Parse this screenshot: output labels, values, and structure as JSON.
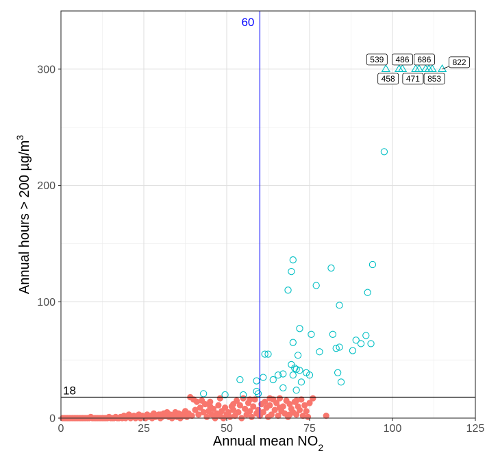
{
  "chart_data": {
    "type": "scatter",
    "title": "",
    "xlabel": "Annual mean NO",
    "xlabel_sub": "2",
    "ylabel": "Annual hours > 200 µg/m",
    "ylabel_sup": "3",
    "xlim": [
      0,
      125
    ],
    "ylim": [
      0,
      350
    ],
    "x_ticks": [
      0,
      25,
      50,
      75,
      100,
      125
    ],
    "y_ticks": [
      0,
      100,
      200,
      300
    ],
    "grid": true,
    "legend": "none",
    "colors": {
      "below": "#F8766D",
      "above": "#00BFC4",
      "vline": "#0000FF",
      "hline": "#000000"
    },
    "reference_lines": [
      {
        "orientation": "vertical",
        "value": 60,
        "label": "60",
        "color": "#0000FF"
      },
      {
        "orientation": "horizontal",
        "value": 18,
        "label": "18",
        "color": "#000000"
      }
    ],
    "series": [
      {
        "marker": "filled-circle",
        "color": "#F8766D",
        "points": [
          [
            0.5,
            0
          ],
          [
            1,
            0
          ],
          [
            1.5,
            0
          ],
          [
            2,
            0
          ],
          [
            2.5,
            0
          ],
          [
            3,
            0
          ],
          [
            3.5,
            0
          ],
          [
            4,
            0
          ],
          [
            4.5,
            0
          ],
          [
            5,
            0
          ],
          [
            5.5,
            0
          ],
          [
            6,
            0
          ],
          [
            6.5,
            0
          ],
          [
            7,
            0
          ],
          [
            7.5,
            0
          ],
          [
            8,
            0
          ],
          [
            8.5,
            0
          ],
          [
            9,
            1
          ],
          [
            9.5,
            0
          ],
          [
            10,
            0
          ],
          [
            10.5,
            0
          ],
          [
            11,
            0
          ],
          [
            11.5,
            0
          ],
          [
            12,
            0
          ],
          [
            12.5,
            0
          ],
          [
            13,
            0
          ],
          [
            13.5,
            0
          ],
          [
            14,
            0
          ],
          [
            14.5,
            1
          ],
          [
            15,
            0
          ],
          [
            15.5,
            0
          ],
          [
            16,
            0
          ],
          [
            16.5,
            1
          ],
          [
            17,
            0
          ],
          [
            17.5,
            0
          ],
          [
            18,
            1
          ],
          [
            18.5,
            0
          ],
          [
            19,
            2
          ],
          [
            19.5,
            0
          ],
          [
            20,
            1
          ],
          [
            20.5,
            3
          ],
          [
            21,
            0
          ],
          [
            21.5,
            1
          ],
          [
            22,
            2
          ],
          [
            22.5,
            0
          ],
          [
            23,
            1
          ],
          [
            23.5,
            3
          ],
          [
            24,
            0
          ],
          [
            24.5,
            2
          ],
          [
            25,
            1
          ],
          [
            25.5,
            0
          ],
          [
            26,
            3
          ],
          [
            26.5,
            1
          ],
          [
            27,
            2
          ],
          [
            27.5,
            0
          ],
          [
            28,
            4
          ],
          [
            28.5,
            1
          ],
          [
            29,
            2
          ],
          [
            29.5,
            3
          ],
          [
            30,
            0
          ],
          [
            30.5,
            1
          ],
          [
            31,
            4
          ],
          [
            31.5,
            2
          ],
          [
            32,
            5
          ],
          [
            32.5,
            1
          ],
          [
            33,
            3
          ],
          [
            33.5,
            0
          ],
          [
            34,
            2
          ],
          [
            34.5,
            5
          ],
          [
            35,
            1
          ],
          [
            35.5,
            4
          ],
          [
            36,
            0
          ],
          [
            36.5,
            3
          ],
          [
            37,
            2
          ],
          [
            37.5,
            6
          ],
          [
            38,
            1
          ],
          [
            38.5,
            4
          ],
          [
            39,
            18
          ],
          [
            39.5,
            2
          ],
          [
            40,
            16
          ],
          [
            40.5,
            7
          ],
          [
            41,
            14
          ],
          [
            41.5,
            3
          ],
          [
            42,
            9
          ],
          [
            42.5,
            15
          ],
          [
            43,
            5
          ],
          [
            43.5,
            12
          ],
          [
            44,
            1
          ],
          [
            44.5,
            6
          ],
          [
            45,
            10
          ],
          [
            45.5,
            3
          ],
          [
            46,
            8
          ],
          [
            46.5,
            0
          ],
          [
            47,
            4
          ],
          [
            47.5,
            11
          ],
          [
            48,
            2
          ],
          [
            48.5,
            6
          ],
          [
            49,
            0
          ],
          [
            49.5,
            9
          ],
          [
            50,
            3
          ],
          [
            50.5,
            5
          ],
          [
            51,
            1
          ],
          [
            51.5,
            10
          ],
          [
            52,
            7
          ],
          [
            52.5,
            2
          ],
          [
            53,
            15
          ],
          [
            53.5,
            5
          ],
          [
            54,
            11
          ],
          [
            54.5,
            0
          ],
          [
            55,
            17
          ],
          [
            55.5,
            8
          ],
          [
            56,
            3
          ],
          [
            56.5,
            13
          ],
          [
            57,
            6
          ],
          [
            57.5,
            1
          ],
          [
            58,
            10
          ],
          [
            58.5,
            16
          ],
          [
            59,
            4
          ],
          [
            59.5,
            7
          ],
          [
            60,
            2
          ],
          [
            60.5,
            12
          ],
          [
            61,
            5
          ],
          [
            61.5,
            14
          ],
          [
            62,
            9
          ],
          [
            62.5,
            1
          ],
          [
            63,
            11
          ],
          [
            63.5,
            3
          ],
          [
            64,
            16
          ],
          [
            64.5,
            7
          ],
          [
            65,
            13
          ],
          [
            65.5,
            2
          ],
          [
            66,
            17
          ],
          [
            66.5,
            6
          ],
          [
            67,
            10
          ],
          [
            67.5,
            4
          ],
          [
            68,
            15
          ],
          [
            68.5,
            1
          ],
          [
            69,
            12
          ],
          [
            69.5,
            8
          ],
          [
            70,
            5
          ],
          [
            70.5,
            14
          ],
          [
            71,
            3
          ],
          [
            71.5,
            10
          ],
          [
            72,
            7
          ],
          [
            72.5,
            16
          ],
          [
            73,
            2
          ],
          [
            73.5,
            11
          ],
          [
            74,
            6
          ],
          [
            74.5,
            1
          ],
          [
            75,
            13
          ],
          [
            76,
            17
          ],
          [
            80,
            2
          ],
          [
            30,
            3
          ],
          [
            27,
            1
          ],
          [
            45,
            14
          ],
          [
            48,
            17
          ],
          [
            52,
            12
          ],
          [
            57,
            16
          ],
          [
            63,
            17
          ],
          [
            66,
            9
          ],
          [
            69,
            3
          ],
          [
            71,
            15
          ]
        ]
      },
      {
        "marker": "open-circle",
        "color": "#00BFC4",
        "points": [
          [
            43,
            21
          ],
          [
            49.5,
            20
          ],
          [
            54,
            33
          ],
          [
            55,
            20
          ],
          [
            59,
            23
          ],
          [
            59.5,
            21
          ],
          [
            59,
            32
          ],
          [
            61,
            35
          ],
          [
            61.5,
            55
          ],
          [
            62.5,
            55
          ],
          [
            64,
            33
          ],
          [
            65.5,
            37
          ],
          [
            67,
            26
          ],
          [
            67,
            38
          ],
          [
            68.5,
            110
          ],
          [
            69.5,
            126
          ],
          [
            69.5,
            46
          ],
          [
            70,
            136
          ],
          [
            70,
            65
          ],
          [
            70,
            37
          ],
          [
            70.5,
            43
          ],
          [
            71,
            42
          ],
          [
            71,
            24
          ],
          [
            71.5,
            54
          ],
          [
            72,
            77
          ],
          [
            72,
            41
          ],
          [
            72.5,
            31
          ],
          [
            74,
            39
          ],
          [
            75,
            37
          ],
          [
            75.5,
            72
          ],
          [
            77,
            114
          ],
          [
            78,
            57
          ],
          [
            81.5,
            129
          ],
          [
            82,
            72
          ],
          [
            83,
            60
          ],
          [
            83.5,
            39
          ],
          [
            84,
            97
          ],
          [
            84,
            61
          ],
          [
            84.5,
            31
          ],
          [
            88,
            58
          ],
          [
            89,
            67
          ],
          [
            90.5,
            64
          ],
          [
            92,
            71
          ],
          [
            92.5,
            108
          ],
          [
            93.5,
            64
          ],
          [
            94,
            132
          ],
          [
            97.5,
            229
          ]
        ]
      },
      {
        "marker": "open-triangle",
        "color": "#00BFC4",
        "points": [
          [
            98,
            300
          ],
          [
            102,
            300
          ],
          [
            103,
            300
          ],
          [
            107,
            300
          ],
          [
            108,
            300
          ],
          [
            110,
            300
          ],
          [
            111,
            300
          ],
          [
            112,
            300
          ],
          [
            115,
            300
          ]
        ]
      }
    ],
    "point_labels": [
      {
        "text": "539",
        "x": 98,
        "y": 300
      },
      {
        "text": "486",
        "x": 103,
        "y": 300
      },
      {
        "text": "686",
        "x": 110,
        "y": 300
      },
      {
        "text": "822",
        "x": 115,
        "y": 300
      },
      {
        "text": "458",
        "x": 102,
        "y": 300
      },
      {
        "text": "471",
        "x": 107,
        "y": 300
      },
      {
        "text": "853",
        "x": 112,
        "y": 300
      }
    ]
  }
}
